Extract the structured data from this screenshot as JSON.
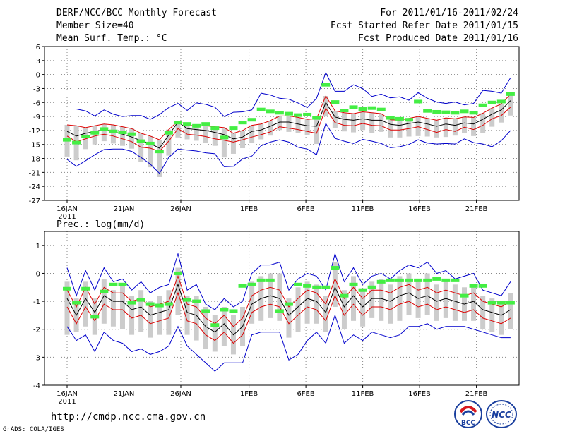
{
  "header": {
    "title": "DERF/NCC/BCC Monthly Forecast",
    "member_size": "Member Size=40",
    "variable": "Mean Surf. Temp.: °C",
    "forecast_period": "For 2011/01/16-2011/02/24",
    "start_refer_date": "Fcst Started Refer Date 2011/01/15",
    "produced_date": "Fcst Produced Date 2011/01/16"
  },
  "precip_label": "Prec.: log(mm/d)",
  "footer": {
    "url": "http://cmdp.ncc.cma.gov.cn",
    "credit": "GrADS: COLA/IGES",
    "logo_bcc": "BCC",
    "logo_ncc": "NCC"
  },
  "colors": {
    "envelope": "#0000cc",
    "spread": "#dd0000",
    "mean": "#000000",
    "box": "#cccccc",
    "climatology": "#44ee44",
    "grid": "#888888"
  },
  "chart_data": [
    {
      "type": "line",
      "name": "temperature",
      "ylabel": "Mean Surf. Temp.: °C",
      "ylim": [
        -27,
        6
      ],
      "yticks": [
        6,
        3,
        0,
        -3,
        -6,
        -9,
        -12,
        -15,
        -18,
        -21,
        -24,
        -27
      ],
      "xlim": [
        0,
        39
      ],
      "xticks": [
        {
          "day": 0,
          "label": "16JAN",
          "sub": "2011"
        },
        {
          "day": 5,
          "label": "21JAN"
        },
        {
          "day": 10,
          "label": "26JAN"
        },
        {
          "day": 16,
          "label": "1FEB"
        },
        {
          "day": 21,
          "label": "6FEB"
        },
        {
          "day": 26,
          "label": "11FEB"
        },
        {
          "day": 31,
          "label": "16FEB"
        },
        {
          "day": 36,
          "label": "21FEB"
        }
      ],
      "grid": true,
      "series": [
        {
          "name": "max",
          "values": [
            -7.4,
            -7.4,
            -7.8,
            -8.9,
            -7.6,
            -8.5,
            -9.0,
            -8.8,
            -8.8,
            -9.6,
            -8.6,
            -7.1,
            -6.2,
            -7.7,
            -6.1,
            -6.4,
            -7.0,
            -9.0,
            -8.1,
            -8.0,
            -7.6,
            -4.0,
            -4.4,
            -5.1,
            -5.3,
            -6.1,
            -7.1,
            -5.1,
            0.4,
            -3.6,
            -3.6,
            -2.2,
            -3.0,
            -4.7,
            -4.2,
            -5.0,
            -4.8,
            -5.5,
            -3.9,
            -5.1,
            -5.9,
            -6.2,
            -5.9,
            -6.5,
            -6.2,
            -3.4,
            -3.6,
            -4.0,
            -0.7
          ]
        },
        {
          "name": "upper",
          "values": [
            -10.8,
            -11.0,
            -11.4,
            -11.0,
            -10.6,
            -10.8,
            -11.2,
            -11.6,
            -12.6,
            -13.2,
            -14.0,
            -11.8,
            -10.0,
            -10.8,
            -11.1,
            -11.0,
            -11.2,
            -11.4,
            -12.6,
            -12.0,
            -10.9,
            -10.6,
            -9.9,
            -8.9,
            -8.9,
            -9.2,
            -9.6,
            -9.5,
            -4.6,
            -7.8,
            -8.2,
            -8.4,
            -8.0,
            -8.2,
            -8.4,
            -9.7,
            -9.8,
            -9.4,
            -9.0,
            -9.4,
            -9.8,
            -9.3,
            -9.5,
            -9.1,
            -9.2,
            -8.3,
            -7.2,
            -6.3,
            -4.2
          ]
        },
        {
          "name": "mean",
          "values": [
            -12.2,
            -13.2,
            -12.6,
            -12.2,
            -11.8,
            -12.2,
            -12.8,
            -13.4,
            -14.2,
            -14.8,
            -15.8,
            -13.0,
            -10.2,
            -11.6,
            -11.8,
            -12.0,
            -12.4,
            -12.9,
            -13.8,
            -13.4,
            -12.2,
            -11.9,
            -11.1,
            -10.2,
            -10.2,
            -10.6,
            -11.0,
            -11.1,
            -6.0,
            -9.1,
            -9.6,
            -9.8,
            -9.5,
            -9.8,
            -9.8,
            -10.7,
            -10.9,
            -10.5,
            -10.2,
            -10.6,
            -11.1,
            -10.6,
            -10.9,
            -10.4,
            -10.6,
            -9.6,
            -8.5,
            -7.6,
            -5.6
          ]
        },
        {
          "name": "lower",
          "values": [
            -13.2,
            -14.4,
            -13.8,
            -13.2,
            -12.8,
            -13.2,
            -13.8,
            -14.4,
            -15.6,
            -15.8,
            -16.5,
            -14.3,
            -11.6,
            -12.8,
            -13.0,
            -13.3,
            -13.8,
            -14.1,
            -14.5,
            -14.0,
            -13.4,
            -12.9,
            -12.3,
            -11.2,
            -11.5,
            -11.8,
            -12.2,
            -12.6,
            -7.2,
            -10.3,
            -10.9,
            -11.0,
            -10.5,
            -10.9,
            -11.0,
            -11.9,
            -11.9,
            -11.6,
            -11.2,
            -11.8,
            -12.4,
            -11.8,
            -12.2,
            -11.3,
            -11.8,
            -10.9,
            -9.5,
            -8.8,
            -7.0
          ]
        },
        {
          "name": "min",
          "values": [
            -18.2,
            -19.7,
            -18.5,
            -17.2,
            -16.1,
            -16.0,
            -16.0,
            -16.5,
            -17.8,
            -19.2,
            -21.2,
            -17.8,
            -16.0,
            -16.2,
            -16.4,
            -16.8,
            -17.0,
            -19.8,
            -19.7,
            -18.1,
            -17.5,
            -15.3,
            -14.5,
            -14.0,
            -14.5,
            -15.6,
            -16.0,
            -17.2,
            -10.5,
            -13.7,
            -14.3,
            -14.8,
            -13.9,
            -14.3,
            -14.8,
            -15.7,
            -15.5,
            -15.0,
            -14.0,
            -14.7,
            -14.9,
            -14.8,
            -14.9,
            -13.8,
            -14.6,
            -14.9,
            -15.5,
            -14.2,
            -12.0
          ]
        },
        {
          "name": "climatology",
          "values": [
            -14.0,
            -14.6,
            -13.3,
            -12.5,
            -11.7,
            -12.2,
            -12.4,
            -12.8,
            -14.3,
            -14.8,
            -16.5,
            -12.5,
            -10.3,
            -10.6,
            -11.0,
            -10.6,
            -11.5,
            -13.5,
            -11.5,
            -10.3,
            -9.7,
            -7.5,
            -7.9,
            -8.2,
            -8.4,
            -8.7,
            -8.6,
            -9.3,
            -2.2,
            -5.9,
            -7.7,
            -7.0,
            -7.4,
            -7.2,
            -7.5,
            -9.3,
            -9.5,
            -9.7,
            -5.8,
            -7.8,
            -8.0,
            -8.1,
            -8.2,
            -7.9,
            -8.2,
            -6.6,
            -6.0,
            -5.8,
            -4.2
          ]
        },
        {
          "name": "box_top",
          "values": [
            -10.8,
            -11.0,
            -11.4,
            -11.0,
            -10.6,
            -10.8,
            -11.2,
            -11.6,
            -12.6,
            -13.2,
            -14.0,
            -11.8,
            -10.0,
            -10.8,
            -11.1,
            -11.0,
            -11.2,
            -11.4,
            -12.6,
            -12.0,
            -10.9,
            -10.6,
            -9.9,
            -8.9,
            -8.9,
            -9.2,
            -9.6,
            -9.5,
            -4.6,
            -7.8,
            -8.2,
            -8.4,
            -8.0,
            -8.2,
            -8.4,
            -9.7,
            -9.8,
            -9.4,
            -9.0,
            -9.4,
            -9.8,
            -9.3,
            -9.5,
            -9.1,
            -9.2,
            -8.3,
            -7.2,
            -6.3,
            -4.2
          ]
        },
        {
          "name": "box_bottom",
          "values": [
            -17.6,
            -18.4,
            -16.0,
            -15.0,
            -14.3,
            -14.8,
            -15.3,
            -15.9,
            -18.7,
            -19.9,
            -22.0,
            -17.4,
            -13.5,
            -13.9,
            -14.2,
            -14.6,
            -15.3,
            -17.8,
            -17.0,
            -15.8,
            -14.7,
            -13.9,
            -13.1,
            -11.9,
            -12.3,
            -12.6,
            -13.0,
            -14.9,
            -9.0,
            -11.4,
            -12.2,
            -12.4,
            -11.9,
            -12.5,
            -12.3,
            -13.5,
            -13.5,
            -13.3,
            -13.2,
            -13.3,
            -13.5,
            -13.4,
            -13.1,
            -12.5,
            -13.2,
            -12.5,
            -11.2,
            -10.3,
            -8.8
          ]
        }
      ]
    },
    {
      "type": "line",
      "name": "precipitation",
      "ylabel": "Prec.: log(mm/d)",
      "ylim": [
        -4,
        1.5
      ],
      "yticks": [
        1,
        0,
        -1,
        -2,
        -3,
        -4
      ],
      "xlim": [
        0,
        39
      ],
      "xticks": [
        {
          "day": 0,
          "label": "16JAN",
          "sub": "2011"
        },
        {
          "day": 5,
          "label": "21JAN"
        },
        {
          "day": 10,
          "label": "26JAN"
        },
        {
          "day": 16,
          "label": "1FEB"
        },
        {
          "day": 21,
          "label": "6FEB"
        },
        {
          "day": 26,
          "label": "11FEB"
        },
        {
          "day": 31,
          "label": "16FEB"
        },
        {
          "day": 36,
          "label": "21FEB"
        }
      ],
      "grid": true,
      "series": [
        {
          "name": "max",
          "values": [
            0.2,
            -0.8,
            0.1,
            -0.6,
            0.2,
            -0.3,
            -0.2,
            -0.6,
            -0.3,
            -0.7,
            -0.5,
            -0.4,
            0.7,
            -0.6,
            -0.4,
            -1.1,
            -1.3,
            -0.9,
            -1.2,
            -1.0,
            0.0,
            0.3,
            0.3,
            0.4,
            -0.6,
            -0.2,
            0.0,
            -0.1,
            -0.6,
            0.7,
            -0.3,
            0.2,
            -0.4,
            -0.1,
            0.0,
            -0.2,
            0.1,
            0.3,
            0.2,
            0.4,
            0.0,
            0.1,
            -0.2,
            -0.1,
            0.0,
            -0.6,
            -0.7,
            -0.8,
            -0.3
          ]
        },
        {
          "name": "upper",
          "values": [
            -0.6,
            -1.2,
            -0.5,
            -1.1,
            -0.5,
            -0.7,
            -0.7,
            -1.0,
            -0.9,
            -1.2,
            -1.1,
            -1.0,
            -0.1,
            -1.1,
            -1.2,
            -1.6,
            -1.8,
            -1.5,
            -1.9,
            -1.6,
            -0.8,
            -0.6,
            -0.5,
            -0.6,
            -1.2,
            -0.9,
            -0.6,
            -0.7,
            -1.1,
            -0.2,
            -0.9,
            -0.5,
            -0.9,
            -0.6,
            -0.6,
            -0.7,
            -0.5,
            -0.4,
            -0.6,
            -0.5,
            -0.7,
            -0.6,
            -0.7,
            -0.8,
            -0.7,
            -1.0,
            -1.1,
            -1.2,
            -1.0
          ]
        },
        {
          "name": "mean",
          "values": [
            -0.9,
            -1.5,
            -0.9,
            -1.4,
            -0.8,
            -1.0,
            -1.0,
            -1.3,
            -1.2,
            -1.5,
            -1.4,
            -1.3,
            -0.4,
            -1.4,
            -1.5,
            -1.9,
            -2.1,
            -1.8,
            -2.2,
            -1.9,
            -1.1,
            -0.9,
            -0.8,
            -0.9,
            -1.5,
            -1.2,
            -0.9,
            -1.0,
            -1.4,
            -0.5,
            -1.2,
            -0.8,
            -1.2,
            -0.9,
            -0.9,
            -1.0,
            -0.8,
            -0.7,
            -0.9,
            -0.8,
            -1.0,
            -0.9,
            -1.0,
            -1.1,
            -1.0,
            -1.3,
            -1.4,
            -1.5,
            -1.3
          ]
        },
        {
          "name": "lower",
          "values": [
            -1.2,
            -1.8,
            -1.2,
            -1.7,
            -1.1,
            -1.3,
            -1.3,
            -1.6,
            -1.5,
            -1.8,
            -1.7,
            -1.6,
            -0.7,
            -1.7,
            -1.8,
            -2.2,
            -2.4,
            -2.1,
            -2.5,
            -2.2,
            -1.4,
            -1.2,
            -1.1,
            -1.2,
            -1.8,
            -1.5,
            -1.2,
            -1.3,
            -1.7,
            -0.8,
            -1.5,
            -1.1,
            -1.5,
            -1.2,
            -1.2,
            -1.3,
            -1.1,
            -1.0,
            -1.2,
            -1.1,
            -1.3,
            -1.2,
            -1.3,
            -1.4,
            -1.3,
            -1.6,
            -1.7,
            -1.8,
            -1.6
          ]
        },
        {
          "name": "min",
          "values": [
            -1.9,
            -2.4,
            -2.2,
            -2.8,
            -2.1,
            -2.4,
            -2.5,
            -2.8,
            -2.7,
            -2.9,
            -2.8,
            -2.6,
            -1.9,
            -2.6,
            -2.9,
            -3.2,
            -3.5,
            -3.2,
            -3.2,
            -3.2,
            -2.2,
            -2.1,
            -2.1,
            -2.1,
            -3.1,
            -2.9,
            -2.4,
            -2.1,
            -2.5,
            -1.5,
            -2.5,
            -2.2,
            -2.4,
            -2.1,
            -2.2,
            -2.3,
            -2.2,
            -1.9,
            -1.9,
            -1.8,
            -2.0,
            -1.9,
            -1.9,
            -1.9,
            -2.0,
            -2.1,
            -2.2,
            -2.3,
            -2.3
          ]
        },
        {
          "name": "climatology",
          "values": [
            -0.55,
            -1.05,
            -0.55,
            -1.55,
            -0.65,
            -0.4,
            -0.4,
            -1.05,
            -0.95,
            -1.1,
            -1.15,
            -1.1,
            0.0,
            -0.95,
            -1.0,
            -1.35,
            -1.85,
            -1.3,
            -1.35,
            -0.45,
            -0.4,
            -0.25,
            -0.25,
            -1.35,
            -1.1,
            -0.4,
            -0.45,
            -0.5,
            -0.5,
            0.2,
            -0.8,
            -0.4,
            -0.6,
            -0.5,
            -0.3,
            -0.25,
            -0.25,
            -0.25,
            -0.25,
            -0.25,
            -0.2,
            -0.25,
            -0.25,
            -0.8,
            -0.45,
            -0.45,
            -1.05,
            -1.05,
            -1.05
          ]
        },
        {
          "name": "box_top",
          "values": [
            -0.3,
            -0.9,
            -0.3,
            -0.9,
            -0.2,
            -0.6,
            -0.4,
            -0.8,
            -0.6,
            -1.0,
            -0.8,
            -0.6,
            0.2,
            -0.8,
            -0.8,
            -1.2,
            -1.5,
            -1.2,
            -1.5,
            -1.2,
            -0.3,
            -0.1,
            0.0,
            0.0,
            -0.9,
            -0.5,
            -0.3,
            -0.4,
            -0.8,
            0.4,
            -0.6,
            -0.1,
            -0.6,
            -0.3,
            -0.2,
            -0.4,
            -0.1,
            0.0,
            -0.2,
            0.0,
            -0.4,
            -0.2,
            -0.4,
            -0.5,
            -0.4,
            -0.8,
            -0.9,
            -1.0,
            -0.7
          ]
        },
        {
          "name": "box_bottom",
          "values": [
            -2.2,
            -2.1,
            -1.9,
            -2.2,
            -1.8,
            -1.9,
            -2.0,
            -2.2,
            -2.1,
            -2.3,
            -2.2,
            -2.2,
            -1.5,
            -2.2,
            -2.4,
            -2.7,
            -2.8,
            -2.6,
            -2.9,
            -2.6,
            -1.8,
            -1.7,
            -1.6,
            -1.7,
            -2.3,
            -2.1,
            -1.8,
            -1.8,
            -2.1,
            -1.2,
            -2.0,
            -1.7,
            -1.9,
            -1.6,
            -1.7,
            -1.8,
            -1.7,
            -1.5,
            -1.6,
            -1.5,
            -1.7,
            -1.6,
            -1.7,
            -1.7,
            -1.7,
            -2.0,
            -2.1,
            -2.2,
            -2.0
          ]
        }
      ]
    }
  ]
}
